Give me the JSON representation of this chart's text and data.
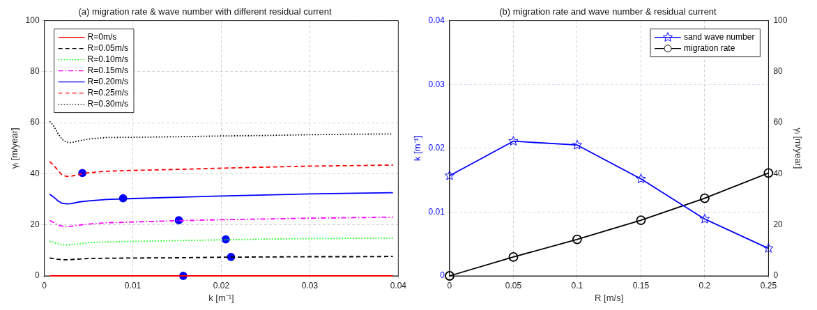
{
  "chart_data": [
    {
      "type": "line",
      "title": "(a) migration rate & wave number with different residual current",
      "xlabel": "k [m⁻¹]",
      "ylabel": "γₗ [m/year]",
      "xlim": [
        0,
        0.04
      ],
      "xticks": [
        0,
        0.01,
        0.02,
        0.03,
        0.04
      ],
      "ylim": [
        0,
        100
      ],
      "yticks": [
        0,
        20,
        40,
        60,
        80,
        100
      ],
      "grid": true,
      "legend": "top left",
      "x": [
        0.0006,
        0.001,
        0.0015,
        0.002,
        0.0025,
        0.003,
        0.004,
        0.005,
        0.007,
        0.01,
        0.015,
        0.02,
        0.025,
        0.03,
        0.035,
        0.0394
      ],
      "series": [
        {
          "name": "R=0m/s",
          "color": "#ff0000",
          "line_style": "solid",
          "marker": "none",
          "values": [
            0,
            0,
            0,
            0,
            0,
            0,
            0,
            0,
            0,
            0,
            0,
            0,
            0,
            0,
            0,
            0
          ]
        },
        {
          "name": "R=0.05m/s",
          "color": "#000000",
          "line_style": "dashed",
          "marker": "none",
          "values": [
            7,
            6.8,
            6.5,
            6.3,
            6.3,
            6.4,
            6.6,
            6.8,
            6.9,
            7.0,
            7.1,
            7.3,
            7.4,
            7.5,
            7.5,
            7.6
          ]
        },
        {
          "name": "R=0.10m/s",
          "color": "#00ff00",
          "line_style": "dotted",
          "marker": "none",
          "values": [
            13.5,
            13.2,
            12.6,
            12.2,
            12.1,
            12.2,
            12.6,
            13.0,
            13.3,
            13.5,
            13.8,
            14.1,
            14.4,
            14.6,
            14.7,
            14.8
          ]
        },
        {
          "name": "R=0.15m/s",
          "color": "#ff00ff",
          "line_style": "dashdot",
          "marker": "none",
          "values": [
            21.7,
            21,
            20,
            19.5,
            19.3,
            19.4,
            19.9,
            20.3,
            20.8,
            21.1,
            21.6,
            22.0,
            22.3,
            22.6,
            22.8,
            23.0
          ]
        },
        {
          "name": "R=0.20m/s",
          "color": "#0000ff",
          "line_style": "solid",
          "marker": "none",
          "values": [
            32,
            31,
            29.5,
            28.4,
            28.2,
            28.3,
            29.0,
            29.4,
            29.9,
            30.3,
            30.8,
            31.3,
            31.7,
            32.1,
            32.4,
            32.6
          ]
        },
        {
          "name": "R=0.25m/s",
          "color": "#ff0000",
          "line_style": "dashed",
          "marker": "none",
          "values": [
            44.8,
            43.5,
            41.5,
            39.5,
            39.0,
            39.0,
            39.8,
            40.4,
            41.0,
            41.3,
            41.7,
            42.2,
            42.6,
            43.0,
            43.2,
            43.4
          ]
        },
        {
          "name": "R=0.30m/s",
          "color": "#000000",
          "line_style": "dotted",
          "marker": "none",
          "values": [
            60.5,
            59,
            56,
            53.5,
            52.3,
            52.2,
            53.0,
            53.6,
            54.2,
            54.3,
            54.5,
            54.8,
            55.0,
            55.3,
            55.5,
            55.6
          ]
        },
        {
          "type": "scatter",
          "color": "#0000ff",
          "marker": "circle",
          "x": [
            0.0043,
            0.0089,
            0.0152,
            0.0205,
            0.0211,
            0.0157
          ],
          "values": [
            40.3,
            30.4,
            21.8,
            14.3,
            7.4,
            0
          ]
        }
      ]
    },
    {
      "type": "line",
      "title": "(b) migration rate and wave number & residual current",
      "xlabel": "R [m/s]",
      "ylabel": "k [m⁻¹]",
      "y2label": "γₗ [m/year]",
      "xlim": [
        0,
        0.25
      ],
      "xticks": [
        0,
        0.05,
        0.1,
        0.15,
        0.2,
        0.25
      ],
      "ylim": [
        0,
        0.04
      ],
      "yticks": [
        0,
        0.01,
        0.02,
        0.03,
        0.04
      ],
      "y2lim": [
        0,
        100
      ],
      "y2ticks": [
        0,
        20,
        40,
        60,
        80,
        100
      ],
      "grid": true,
      "legend": "top right",
      "x": [
        0,
        0.05,
        0.1,
        0.15,
        0.2,
        0.25
      ],
      "series": [
        {
          "name": "sand wave number",
          "color": "#0000ff",
          "line_style": "solid",
          "marker": "star",
          "values": [
            0.0157,
            0.0211,
            0.0205,
            0.0152,
            0.0089,
            0.0043
          ]
        },
        {
          "name": "migration rate",
          "color": "#000000",
          "line_style": "solid",
          "marker": "circle",
          "axis": "y2",
          "values": [
            0,
            7.4,
            14.3,
            21.8,
            30.4,
            40.3
          ]
        }
      ]
    }
  ]
}
